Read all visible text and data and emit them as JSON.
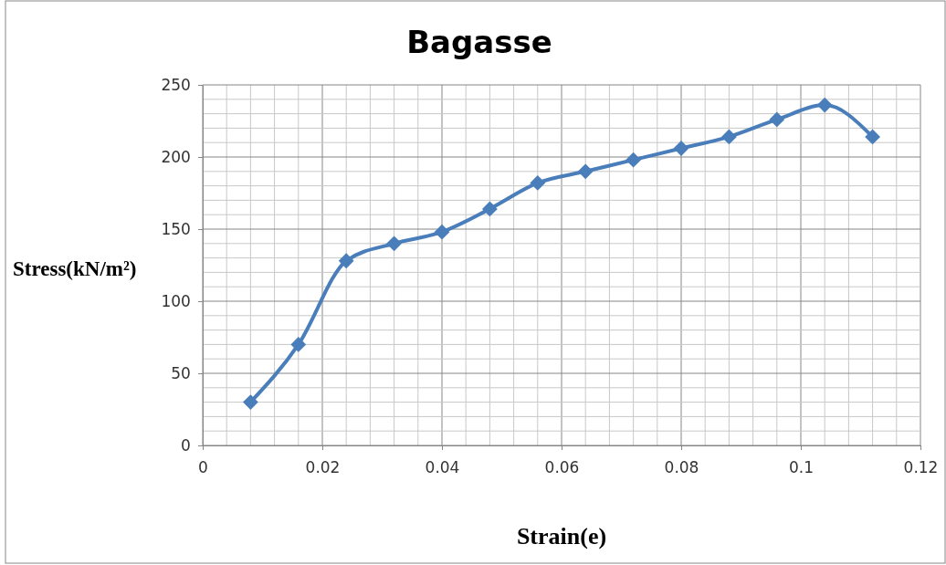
{
  "chart_data": {
    "type": "line",
    "title": "Bagasse",
    "xlabel": "Strain(e)",
    "ylabel": "Stress(kN/m²)",
    "x": [
      0.008,
      0.016,
      0.024,
      0.032,
      0.04,
      0.048,
      0.056,
      0.064,
      0.072,
      0.08,
      0.088,
      0.096,
      0.104,
      0.112
    ],
    "series": [
      {
        "color": "#4a7ebb",
        "values": [
          30,
          70,
          128,
          140,
          148,
          164,
          182,
          190,
          198,
          206,
          214,
          226,
          236,
          214
        ]
      }
    ],
    "xlim": [
      0,
      0.12
    ],
    "xticks": [
      0,
      0.02,
      0.04,
      0.06,
      0.08,
      0.1,
      0.12
    ],
    "ylim": [
      0,
      250
    ],
    "yticks": [
      0,
      50,
      100,
      150,
      200,
      250
    ],
    "grid": true,
    "marker": "diamond",
    "line_style": "solid"
  }
}
